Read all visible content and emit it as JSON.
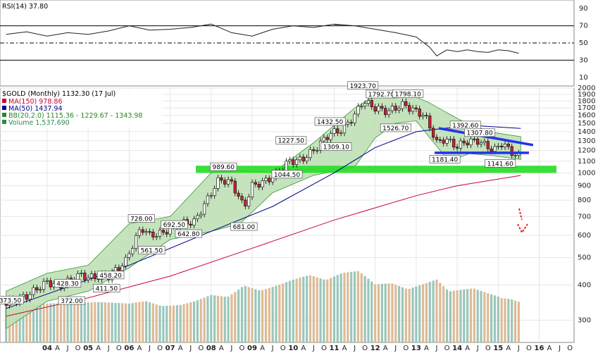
{
  "chart_data": {
    "type": "line",
    "rsi_panel": {
      "title": "RSI(14) 37.80",
      "yticks": [
        90,
        70,
        50,
        30,
        10
      ],
      "ylim": [
        0,
        100
      ],
      "levels": [
        70,
        50,
        30
      ],
      "x": [
        2003.0,
        2003.5,
        2004.0,
        2004.5,
        2005.0,
        2005.5,
        2006.0,
        2006.5,
        2007.0,
        2007.5,
        2008.0,
        2008.5,
        2009.0,
        2009.5,
        2010.0,
        2010.5,
        2011.0,
        2011.5,
        2012.0,
        2012.5,
        2013.0,
        2013.33,
        2013.5,
        2013.75,
        2014.0,
        2014.25,
        2014.5,
        2014.75,
        2015.0,
        2015.25,
        2015.5
      ],
      "values": [
        60,
        63,
        58,
        62,
        60,
        64,
        70,
        65,
        66,
        68,
        72,
        62,
        58,
        66,
        70,
        68,
        72,
        70,
        66,
        62,
        57,
        45,
        35,
        42,
        40,
        42,
        40,
        39,
        42,
        41,
        38
      ]
    },
    "price_panel": {
      "title": "$GOLD (Monthly) 1132.30 (17 Jul)",
      "legend": [
        {
          "label": "MA(150) 978.86",
          "color": "#cc0033"
        },
        {
          "label": "MA(50) 1437.94",
          "color": "#000088"
        },
        {
          "label": "BB(20,2.0) 1115.36 - 1229.67 - 1343.98",
          "color": "#228b22"
        },
        {
          "label": "Volume 1,537,690",
          "color": "#2e8b57"
        }
      ],
      "yticks": [
        2000,
        1900,
        1800,
        1700,
        1600,
        1500,
        1400,
        1300,
        1200,
        1100,
        1000,
        900,
        800,
        700,
        600,
        500,
        400,
        300
      ],
      "ylim": [
        250,
        2000
      ],
      "x_tick_labels": [
        "04",
        "A",
        "J",
        "O",
        "05",
        "A",
        "J",
        "O",
        "06",
        "A",
        "J",
        "O",
        "07",
        "A",
        "J",
        "O",
        "08",
        "A",
        "J",
        "O",
        "09",
        "A",
        "J",
        "O",
        "10",
        "A",
        "J",
        "O",
        "11",
        "A",
        "J",
        "O",
        "12",
        "A",
        "J",
        "O",
        "13",
        "A",
        "J",
        "O",
        "14",
        "A",
        "J",
        "O",
        "15",
        "A",
        "J",
        "O",
        "16",
        "A",
        "J",
        "O"
      ],
      "price_x": [
        2003.0,
        2003.5,
        2004.0,
        2004.3,
        2004.8,
        2005.0,
        2005.5,
        2005.9,
        2006.3,
        2006.5,
        2006.8,
        2007.2,
        2007.6,
        2007.9,
        2008.2,
        2008.5,
        2008.8,
        2009.0,
        2009.3,
        2009.6,
        2009.9,
        2010.2,
        2010.5,
        2010.9,
        2011.2,
        2011.5,
        2011.7,
        2012.0,
        2012.3,
        2012.7,
        2012.9,
        2013.2,
        2013.5,
        2013.7,
        2014.0,
        2014.2,
        2014.5,
        2014.9,
        2015.1,
        2015.3,
        2015.55
      ],
      "price_values": [
        345,
        365,
        410,
        395,
        435,
        425,
        430,
        480,
        640,
        600,
        610,
        660,
        670,
        800,
        950,
        920,
        750,
        900,
        930,
        990,
        1100,
        1110,
        1200,
        1380,
        1420,
        1600,
        1800,
        1700,
        1650,
        1750,
        1680,
        1600,
        1280,
        1320,
        1240,
        1290,
        1300,
        1200,
        1280,
        1190,
        1132
      ],
      "ma150_x": [
        2003.0,
        2005.0,
        2007.0,
        2009.0,
        2011.0,
        2013.0,
        2014.0,
        2015.55
      ],
      "ma150_values": [
        310,
        360,
        430,
        540,
        680,
        830,
        900,
        979
      ],
      "ma50_x": [
        2003.0,
        2006.0,
        2008.0,
        2009.5,
        2011.0,
        2012.0,
        2013.0,
        2013.7,
        2014.5,
        2015.55
      ],
      "ma50_values": [
        330,
        470,
        620,
        760,
        1000,
        1230,
        1400,
        1440,
        1470,
        1438
      ],
      "bb_x": [
        2003.0,
        2004.0,
        2005.0,
        2006.0,
        2007.0,
        2008.0,
        2008.7,
        2009.5,
        2010.5,
        2011.5,
        2012.0,
        2012.5,
        2013.0,
        2013.3,
        2013.8,
        2014.3,
        2014.9,
        2015.55
      ],
      "bb_upper": [
        380,
        440,
        470,
        660,
        700,
        1000,
        1020,
        1000,
        1280,
        1700,
        1880,
        1870,
        1860,
        1780,
        1620,
        1480,
        1390,
        1344
      ],
      "bb_lower": [
        280,
        350,
        380,
        460,
        580,
        620,
        660,
        850,
        980,
        1050,
        1330,
        1500,
        1530,
        1350,
        1100,
        1170,
        1150,
        1115
      ],
      "volume_x": [
        2003.1,
        2003.4,
        2003.7,
        2004.0,
        2004.4,
        2004.8,
        2005.2,
        2005.6,
        2006.0,
        2006.4,
        2006.8,
        2007.2,
        2007.6,
        2008.0,
        2008.4,
        2008.8,
        2009.2,
        2009.6,
        2010.0,
        2010.4,
        2010.8,
        2011.2,
        2011.6,
        2012.0,
        2012.4,
        2012.8,
        2013.2,
        2013.5,
        2013.8,
        2014.1,
        2014.4,
        2014.7,
        2015.0,
        2015.3,
        2015.55
      ],
      "volume_values": [
        300,
        310,
        330,
        340,
        350,
        360,
        380,
        390,
        400,
        450,
        420,
        460,
        480,
        520,
        470,
        560,
        490,
        520,
        560,
        590,
        540,
        600,
        620,
        510,
        530,
        490,
        560,
        620,
        520,
        560,
        600,
        580,
        560,
        520,
        460
      ],
      "annotations": [
        {
          "label": "1923.70",
          "x": 2011.7,
          "y": 1923.7
        },
        {
          "label": "1792.70",
          "x": 2012.15,
          "y": 1792.7
        },
        {
          "label": "1798.10",
          "x": 2012.8,
          "y": 1798.1
        },
        {
          "label": "1526.70",
          "x": 2012.5,
          "y": 1526.7
        },
        {
          "label": "1432.50",
          "x": 2010.9,
          "y": 1432.5
        },
        {
          "label": "1309.10",
          "x": 2011.05,
          "y": 1309.1
        },
        {
          "label": "1227.50",
          "x": 2009.95,
          "y": 1227.5
        },
        {
          "label": "1044.50",
          "x": 2009.85,
          "y": 1044.5
        },
        {
          "label": "989.60",
          "x": 2008.3,
          "y": 989.6
        },
        {
          "label": "681.00",
          "x": 2008.8,
          "y": 681.0
        },
        {
          "label": "728.00",
          "x": 2006.3,
          "y": 728.0
        },
        {
          "label": "692.50",
          "x": 2007.1,
          "y": 692.5
        },
        {
          "label": "642.80",
          "x": 2007.45,
          "y": 642.8
        },
        {
          "label": "561.50",
          "x": 2006.55,
          "y": 561.5
        },
        {
          "label": "458.20",
          "x": 2005.55,
          "y": 458.2
        },
        {
          "label": "428.30",
          "x": 2004.5,
          "y": 428.3
        },
        {
          "label": "411.50",
          "x": 2005.45,
          "y": 411.5
        },
        {
          "label": "372.00",
          "x": 2004.6,
          "y": 372.0
        },
        {
          "label": "373.50",
          "x": 2003.1,
          "y": 373.5
        },
        {
          "label": "1392.60",
          "x": 2014.2,
          "y": 1392.6
        },
        {
          "label": "1307.80",
          "x": 2014.55,
          "y": 1307.8
        },
        {
          "label": "1181.40",
          "x": 2013.7,
          "y": 1181.4
        },
        {
          "label": "1141.60",
          "x": 2015.05,
          "y": 1141.6
        }
      ],
      "trendlines": [
        {
          "color": "#2233ee",
          "points": [
            [
              2013.55,
              1440
            ],
            [
              2015.85,
              1255
            ]
          ]
        },
        {
          "color": "#2233ee",
          "points": [
            [
              2013.45,
              1178
            ],
            [
              2015.75,
              1178
            ]
          ]
        }
      ],
      "support_band": {
        "color": "#22dd22",
        "range": [
          1000,
          1060
        ]
      }
    }
  }
}
